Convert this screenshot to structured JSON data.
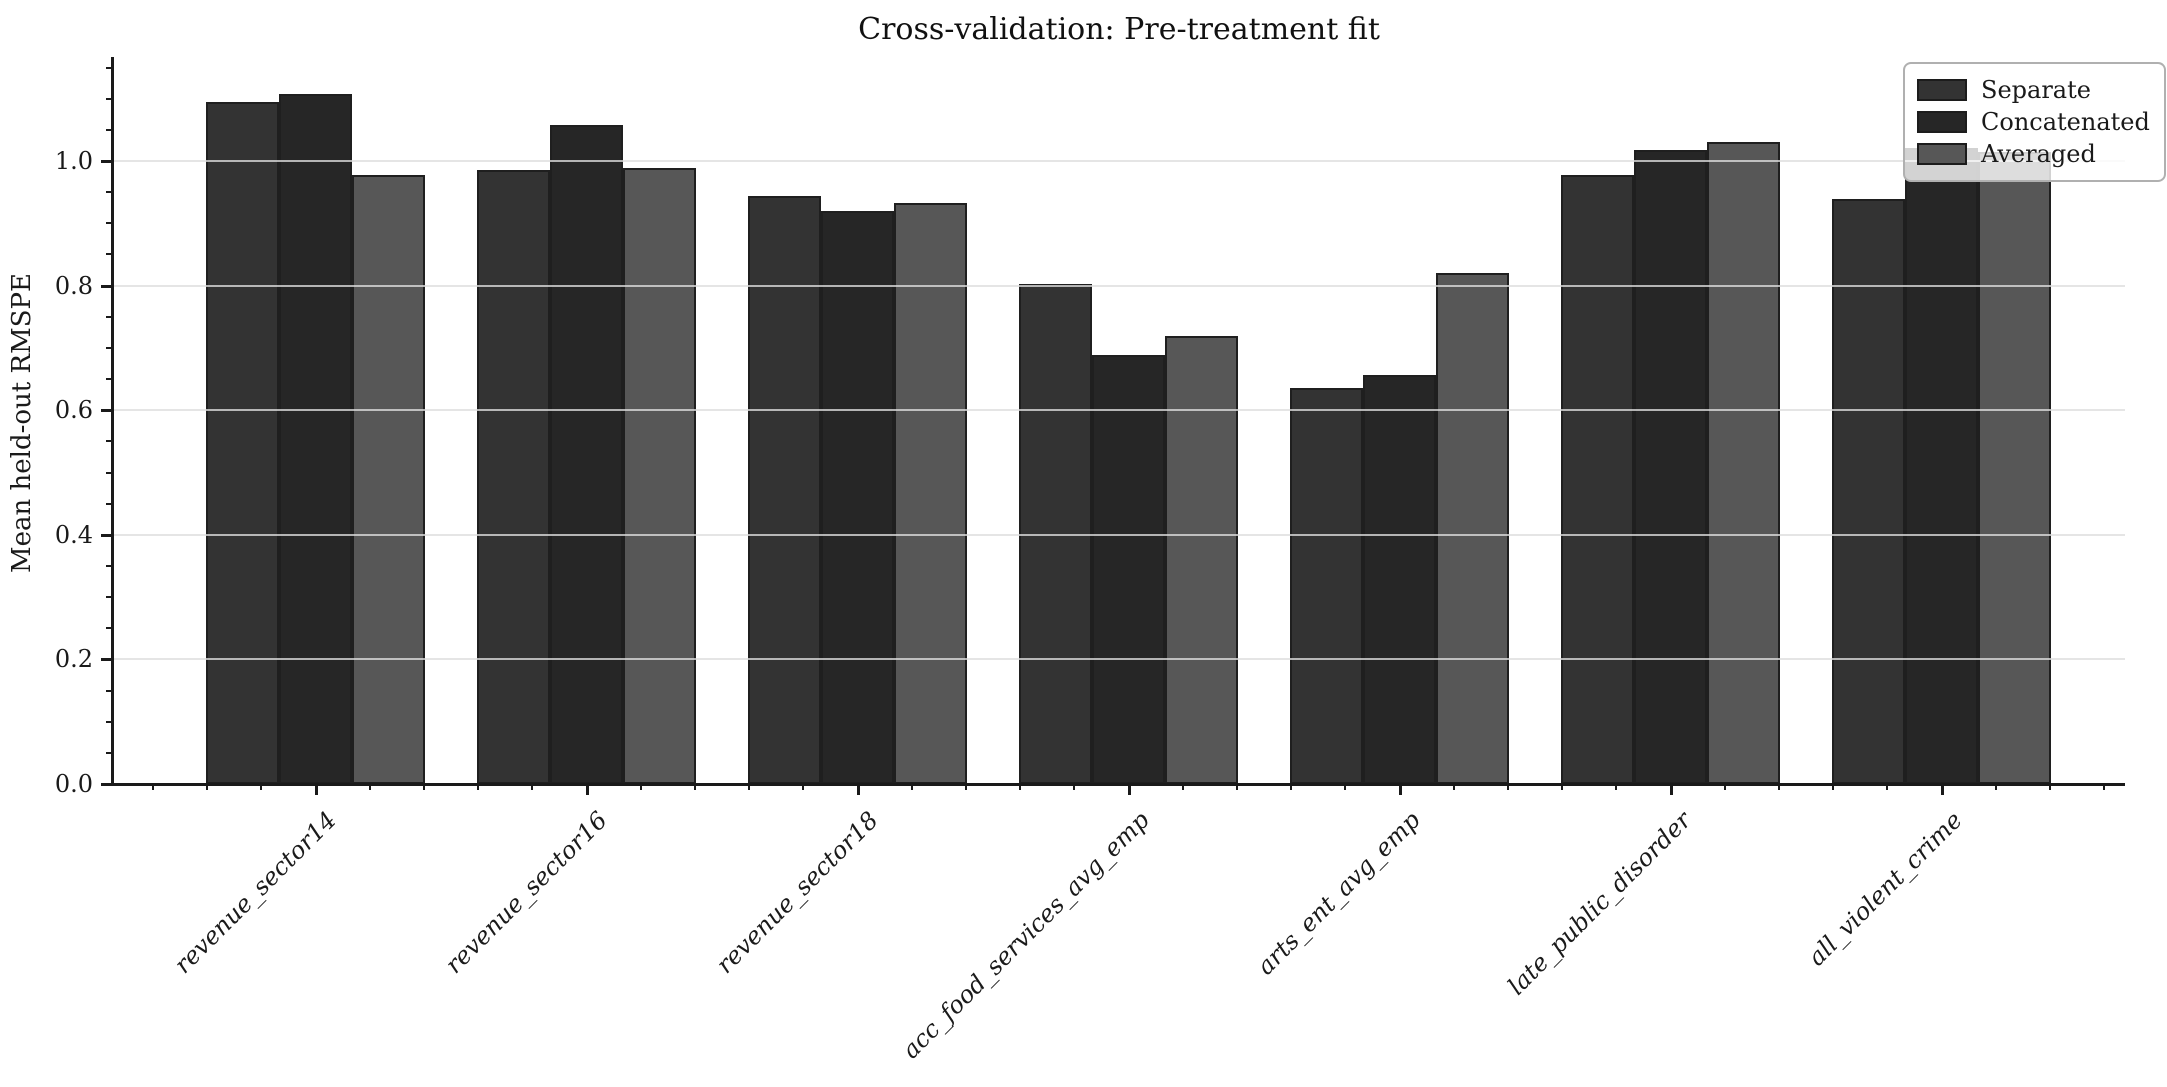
{
  "chart_data": {
    "type": "bar",
    "title": "Cross-validation: Pre-treatment fit",
    "xlabel": "",
    "ylabel": "Mean held-out RMSPE",
    "categories": [
      "revenue_sector14",
      "revenue_sector16",
      "revenue_sector18",
      "acc_food_services_avg_emp",
      "arts_ent_avg_emp",
      "late_public_disorder",
      "all_violent_crime"
    ],
    "series": [
      {
        "name": "Separate",
        "color": "#333333",
        "values": [
          1.095,
          0.986,
          0.944,
          0.803,
          0.636,
          0.977,
          0.939
        ]
      },
      {
        "name": "Concatenated",
        "color": "#262626",
        "values": [
          1.108,
          1.057,
          0.92,
          0.688,
          0.657,
          1.018,
          1.021
        ]
      },
      {
        "name": "Averaged",
        "color": "#575757",
        "values": [
          0.977,
          0.988,
          0.933,
          0.719,
          0.82,
          1.031,
          1.015
        ]
      }
    ],
    "ylim": [
      0.0,
      1.167
    ],
    "yticks": [
      0.0,
      0.2,
      0.4,
      0.6,
      0.8,
      1.0
    ],
    "ytick_labels": [
      "0.0",
      "0.2",
      "0.4",
      "0.6",
      "0.8",
      "1.0"
    ],
    "grid": true,
    "gridlines_above_bars": true,
    "legend_position": "upper right",
    "colors": {
      "axis": "#1a1a1a",
      "grid": "#dedede",
      "bar_edge": "#1f1f1f",
      "legend_border": "#b0b0b0",
      "background": "#ffffff"
    }
  }
}
